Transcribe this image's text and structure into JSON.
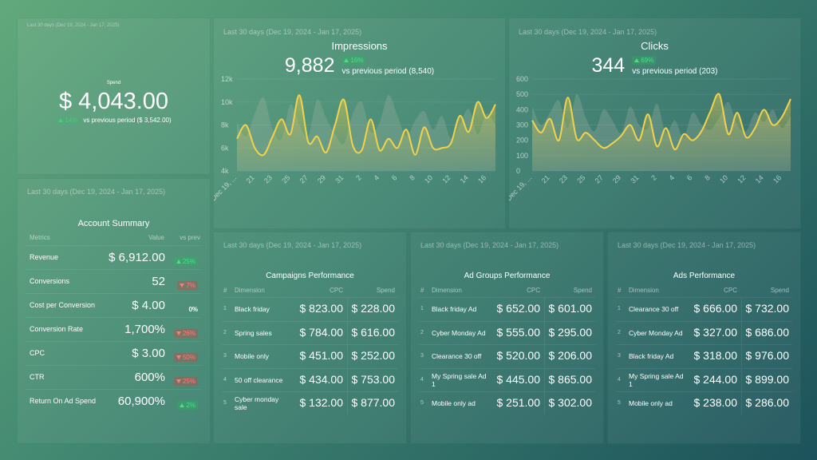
{
  "date_range": "Last 30 days (Dec 19, 2024 - Jan 17, 2025)",
  "spend": {
    "label": "Spend",
    "value": "$ 4,043.00",
    "change": "14%",
    "direction": "up",
    "comparison": "vs previous period ($ 3,542.00)"
  },
  "chart_data": [
    {
      "type": "line",
      "title": "Impressions",
      "kpi": "9,882",
      "change": "16%",
      "direction": "up",
      "comparison": "vs previous period (8,540)",
      "categories": [
        "Dec 19, ...",
        null,
        "21",
        null,
        "23",
        null,
        "25",
        null,
        "27",
        null,
        "29",
        null,
        "31",
        null,
        "2",
        null,
        "4",
        null,
        "6",
        null,
        "8",
        null,
        "10",
        null,
        "12",
        null,
        "14",
        null,
        "16",
        null
      ],
      "series": [
        {
          "color": "#f2d24b",
          "values": [
            6800,
            8000,
            6000,
            5400,
            7000,
            8500,
            7200,
            10600,
            6500,
            7000,
            5600,
            8000,
            10200,
            6200,
            5800,
            8500,
            5800,
            6800,
            6000,
            7600,
            5400,
            7800,
            6000,
            6000,
            6400,
            8800,
            7400,
            10000,
            8600,
            9800
          ]
        },
        {
          "color": "#a9b8a6",
          "values": [
            8200,
            7000,
            9000,
            10400,
            7600,
            6800,
            9800,
            8000,
            7000,
            10200,
            8600,
            7200,
            6400,
            9000,
            10000,
            7400,
            8200,
            10600,
            8800,
            7000,
            8400,
            9200,
            7600,
            8800,
            6800,
            8000,
            9400,
            7200,
            9000,
            8000
          ]
        }
      ],
      "ylim": [
        4000,
        12000
      ],
      "yticks": [
        {
          "value": 4000,
          "label": "4k"
        },
        {
          "value": 6000,
          "label": "6k"
        },
        {
          "value": 8000,
          "label": "8k"
        },
        {
          "value": 10000,
          "label": "10k"
        },
        {
          "value": 12000,
          "label": "12k"
        }
      ]
    },
    {
      "type": "line",
      "title": "Clicks",
      "kpi": "344",
      "change": "69%",
      "direction": "up",
      "comparison": "vs previous period (203)",
      "categories": [
        "Dec 19, ...",
        null,
        "21",
        null,
        "23",
        null,
        "25",
        null,
        "27",
        null,
        "29",
        null,
        "31",
        null,
        "2",
        null,
        "4",
        null,
        "6",
        null,
        "8",
        null,
        "10",
        null,
        "12",
        null,
        "14",
        null,
        "16",
        null
      ],
      "series": [
        {
          "color": "#f2d24b",
          "values": [
            330,
            250,
            340,
            200,
            480,
            210,
            250,
            200,
            150,
            180,
            230,
            300,
            200,
            370,
            160,
            280,
            140,
            240,
            200,
            260,
            390,
            500,
            240,
            380,
            220,
            280,
            400,
            300,
            350,
            470
          ]
        },
        {
          "color": "#a9b8a6",
          "values": [
            420,
            300,
            380,
            460,
            280,
            500,
            350,
            260,
            400,
            330,
            250,
            420,
            300,
            280,
            440,
            250,
            330,
            220,
            380,
            300,
            270,
            350,
            450,
            300,
            260,
            380,
            320,
            400,
            280,
            360
          ]
        }
      ],
      "ylim": [
        0,
        600
      ],
      "yticks": [
        0,
        100,
        200,
        300,
        400,
        500,
        600
      ]
    }
  ],
  "account_summary": {
    "title": "Account Summary",
    "columns": [
      "Metrics",
      "Value",
      "vs prev"
    ],
    "rows": [
      {
        "metric": "Revenue",
        "value": "$ 6,912.00",
        "change": "25%",
        "direction": "up"
      },
      {
        "metric": "Conversions",
        "value": "52",
        "change": "7%",
        "direction": "down"
      },
      {
        "metric": "Cost per Conversion",
        "value": "$ 4.00",
        "change": "0%",
        "direction": null
      },
      {
        "metric": "Conversion Rate",
        "value": "1,700%",
        "change": "26%",
        "direction": "down"
      },
      {
        "metric": "CPC",
        "value": "$ 3.00",
        "change": "50%",
        "direction": "down"
      },
      {
        "metric": "CTR",
        "value": "600%",
        "change": "25%",
        "direction": "down"
      },
      {
        "metric": "Return On Ad Spend",
        "value": "60,900%",
        "change": "2%",
        "direction": "up"
      }
    ]
  },
  "tables": [
    {
      "title": "Campaigns Performance",
      "columns": [
        "#",
        "Dimension",
        "CPC",
        "Spend"
      ],
      "rows": [
        [
          "1",
          "Black friday",
          "$ 823.00",
          "$ 228.00"
        ],
        [
          "2",
          "Spring sales",
          "$ 784.00",
          "$ 616.00"
        ],
        [
          "3",
          "Mobile only",
          "$ 451.00",
          "$ 252.00"
        ],
        [
          "4",
          "50 off clearance",
          "$ 434.00",
          "$ 753.00"
        ],
        [
          "5",
          "Cyber monday sale",
          "$ 132.00",
          "$ 877.00"
        ]
      ]
    },
    {
      "title": "Ad Groups Performance",
      "columns": [
        "#",
        "Dimension",
        "CPC",
        "Spend"
      ],
      "rows": [
        [
          "1",
          "Black friday Ad",
          "$ 652.00",
          "$ 601.00"
        ],
        [
          "2",
          "Cyber Monday Ad",
          "$ 555.00",
          "$ 295.00"
        ],
        [
          "3",
          "Clearance 30 off",
          "$ 520.00",
          "$ 206.00"
        ],
        [
          "4",
          "My Spring sale Ad 1",
          "$ 445.00",
          "$ 865.00"
        ],
        [
          "5",
          "Mobile only ad",
          "$ 251.00",
          "$ 302.00"
        ]
      ]
    },
    {
      "title": "Ads Performance",
      "columns": [
        "#",
        "Dimension",
        "CPC",
        "Spend"
      ],
      "rows": [
        [
          "1",
          "Clearance 30 off",
          "$ 666.00",
          "$ 732.00"
        ],
        [
          "2",
          "Cyber Monday Ad",
          "$ 327.00",
          "$ 686.00"
        ],
        [
          "3",
          "Black friday Ad",
          "$ 318.00",
          "$ 976.00"
        ],
        [
          "4",
          "My Spring sale Ad 1",
          "$ 244.00",
          "$ 899.00"
        ],
        [
          "5",
          "Mobile only ad",
          "$ 238.00",
          "$ 286.00"
        ]
      ]
    }
  ]
}
